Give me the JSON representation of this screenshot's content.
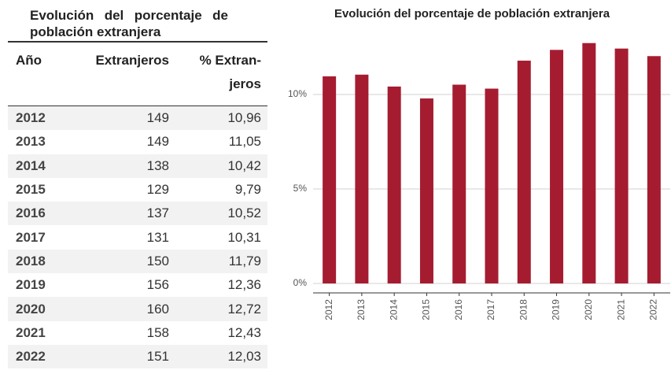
{
  "table": {
    "title": "Evolución del porcentaje de población extranjera",
    "headers": [
      "Año",
      "Extranjeros",
      "% Extran-jeros"
    ],
    "rows": [
      [
        2012,
        149,
        "10,96"
      ],
      [
        2013,
        149,
        "11,05"
      ],
      [
        2014,
        138,
        "10,42"
      ],
      [
        2015,
        129,
        "9,79"
      ],
      [
        2016,
        137,
        "10,52"
      ],
      [
        2017,
        131,
        "10,31"
      ],
      [
        2018,
        150,
        "11,79"
      ],
      [
        2019,
        156,
        "12,36"
      ],
      [
        2020,
        160,
        "12,72"
      ],
      [
        2021,
        158,
        "12,43"
      ],
      [
        2022,
        151,
        "12,03"
      ]
    ]
  },
  "chart_data": {
    "type": "bar",
    "title": "Evolución del porcentaje de población extranjera",
    "categories": [
      "2012",
      "2013",
      "2014",
      "2015",
      "2016",
      "2017",
      "2018",
      "2019",
      "2020",
      "2021",
      "2022"
    ],
    "values": [
      10.96,
      11.05,
      10.42,
      9.79,
      10.52,
      10.31,
      11.79,
      12.36,
      12.72,
      12.43,
      12.03
    ],
    "color": "#a51c30",
    "ylim": [
      -0.5,
      13.5
    ],
    "yticks": [
      {
        "value": 0,
        "label": "0%"
      },
      {
        "value": 5,
        "label": "5%"
      },
      {
        "value": 10,
        "label": "10%"
      }
    ],
    "grid": true
  }
}
